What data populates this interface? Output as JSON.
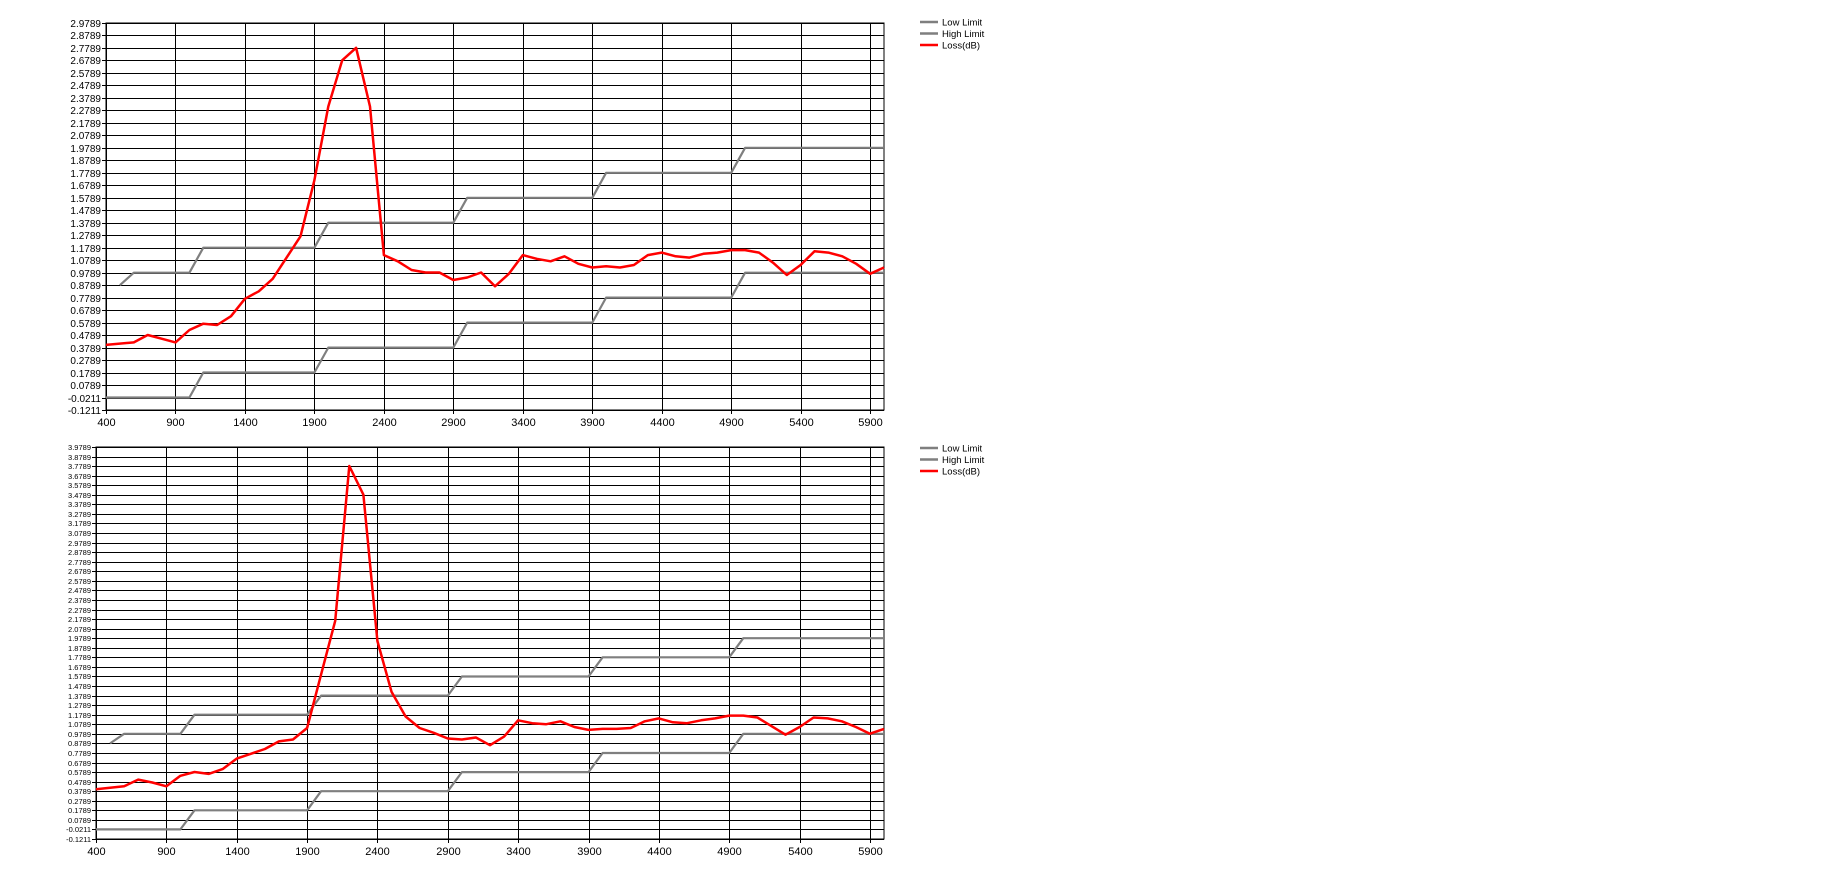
{
  "colors": {
    "limit": "#7f7f7f",
    "loss": "#ff0000",
    "grid": "#000000",
    "background": "#ffffff"
  },
  "chart_data": [
    {
      "type": "line",
      "title": "",
      "xlabel": "",
      "ylabel": "",
      "xlim": [
        400,
        6000
      ],
      "ylim": [
        -0.1211,
        2.9789
      ],
      "x_ticks": [
        "400",
        "900",
        "1400",
        "1900",
        "2400",
        "2900",
        "3400",
        "3900",
        "4400",
        "4900",
        "5400",
        "5900"
      ],
      "y_ticks": [
        "2.9789",
        "2.8789",
        "2.7789",
        "2.6789",
        "2.5789",
        "2.4789",
        "2.3789",
        "2.2789",
        "2.1789",
        "2.0789",
        "1.9789",
        "1.8789",
        "1.7789",
        "1.6789",
        "1.5789",
        "1.4789",
        "1.3789",
        "1.2789",
        "1.1789",
        "1.0789",
        "0.9789",
        "0.8789",
        "0.7789",
        "0.6789",
        "0.5789",
        "0.4789",
        "0.3789",
        "0.2789",
        "0.1789",
        "0.0789",
        "-0.0211",
        "-0.1211"
      ],
      "grid": true,
      "legend_position": "right",
      "series": [
        {
          "name": "Low Limit",
          "color": "#7f7f7f",
          "x": [
            400,
            1000,
            1100,
            1900,
            2000,
            2900,
            3000,
            3900,
            4000,
            4900,
            5000,
            6000
          ],
          "y": [
            -0.0211,
            -0.0211,
            0.1789,
            0.1789,
            0.3789,
            0.3789,
            0.5789,
            0.5789,
            0.7789,
            0.7789,
            0.9789,
            0.9789
          ]
        },
        {
          "name": "High Limit",
          "color": "#7f7f7f",
          "x": [
            500,
            600,
            1000,
            1100,
            1900,
            2000,
            2900,
            3000,
            3900,
            4000,
            4900,
            5000,
            6000
          ],
          "y": [
            0.8789,
            0.9789,
            0.9789,
            1.1789,
            1.1789,
            1.3789,
            1.3789,
            1.5789,
            1.5789,
            1.7789,
            1.7789,
            1.9789,
            1.9789
          ]
        },
        {
          "name": "Loss(dB)",
          "color": "#ff0000",
          "x": [
            400,
            600,
            700,
            800,
            900,
            1000,
            1100,
            1200,
            1300,
            1400,
            1500,
            1600,
            1700,
            1800,
            1900,
            2000,
            2100,
            2200,
            2300,
            2400,
            2500,
            2600,
            2700,
            2800,
            2900,
            3000,
            3100,
            3200,
            3300,
            3400,
            3500,
            3600,
            3700,
            3800,
            3900,
            4000,
            4100,
            4200,
            4300,
            4400,
            4500,
            4600,
            4700,
            4800,
            4900,
            5000,
            5100,
            5200,
            5300,
            5400,
            5500,
            5600,
            5700,
            5800,
            5900,
            6000
          ],
          "y": [
            0.4,
            0.42,
            0.48,
            0.45,
            0.42,
            0.52,
            0.57,
            0.56,
            0.63,
            0.77,
            0.83,
            0.93,
            1.1,
            1.27,
            1.72,
            2.31,
            2.68,
            2.78,
            2.31,
            1.12,
            1.07,
            1.0,
            0.98,
            0.98,
            0.92,
            0.94,
            0.98,
            0.87,
            0.97,
            1.12,
            1.09,
            1.07,
            1.11,
            1.05,
            1.02,
            1.03,
            1.02,
            1.04,
            1.12,
            1.14,
            1.11,
            1.1,
            1.13,
            1.14,
            1.16,
            1.16,
            1.14,
            1.06,
            0.96,
            1.04,
            1.15,
            1.14,
            1.11,
            1.05,
            0.97,
            1.02
          ]
        }
      ]
    },
    {
      "type": "line",
      "title": "",
      "xlabel": "",
      "ylabel": "",
      "xlim": [
        400,
        6000
      ],
      "ylim": [
        -0.1211,
        3.9789
      ],
      "x_ticks": [
        "400",
        "900",
        "1400",
        "1900",
        "2400",
        "2900",
        "3400",
        "3900",
        "4400",
        "4900",
        "5400",
        "5900"
      ],
      "y_ticks": [
        "3.9789",
        "3.8789",
        "3.7789",
        "3.6789",
        "3.5789",
        "3.4789",
        "3.3789",
        "3.2789",
        "3.1789",
        "3.0789",
        "2.9789",
        "2.8789",
        "2.7789",
        "2.6789",
        "2.5789",
        "2.4789",
        "2.3789",
        "2.2789",
        "2.1789",
        "2.0789",
        "1.9789",
        "1.8789",
        "1.7789",
        "1.6789",
        "1.5789",
        "1.4789",
        "1.3789",
        "1.2789",
        "1.1789",
        "1.0789",
        "0.9789",
        "0.8789",
        "0.7789",
        "0.6789",
        "0.5789",
        "0.4789",
        "0.3789",
        "0.2789",
        "0.1789",
        "0.0789",
        "-0.0211",
        "-0.1211"
      ],
      "grid": true,
      "legend_position": "right",
      "series": [
        {
          "name": "Low Limit",
          "color": "#7f7f7f",
          "x": [
            400,
            1000,
            1100,
            1900,
            2000,
            2900,
            3000,
            3900,
            4000,
            4900,
            5000,
            6000
          ],
          "y": [
            -0.0211,
            -0.0211,
            0.1789,
            0.1789,
            0.3789,
            0.3789,
            0.5789,
            0.5789,
            0.7789,
            0.7789,
            0.9789,
            0.9789
          ]
        },
        {
          "name": "High Limit",
          "color": "#7f7f7f",
          "x": [
            500,
            600,
            1000,
            1100,
            1900,
            2000,
            2900,
            3000,
            3900,
            4000,
            4900,
            5000,
            6000
          ],
          "y": [
            0.8789,
            0.9789,
            0.9789,
            1.1789,
            1.1789,
            1.3789,
            1.3789,
            1.5789,
            1.5789,
            1.7789,
            1.7789,
            1.9789,
            1.9789
          ]
        },
        {
          "name": "Loss(dB)",
          "color": "#ff0000",
          "x": [
            400,
            600,
            700,
            800,
            900,
            1000,
            1100,
            1200,
            1300,
            1400,
            1500,
            1600,
            1700,
            1800,
            1900,
            2000,
            2100,
            2200,
            2300,
            2400,
            2500,
            2600,
            2700,
            2800,
            2900,
            3000,
            3100,
            3200,
            3300,
            3400,
            3500,
            3600,
            3700,
            3800,
            3900,
            4000,
            4100,
            4200,
            4300,
            4400,
            4500,
            4600,
            4700,
            4800,
            4900,
            5000,
            5100,
            5200,
            5300,
            5400,
            5500,
            5600,
            5700,
            5800,
            5900,
            6000
          ],
          "y": [
            0.4,
            0.43,
            0.5,
            0.47,
            0.43,
            0.54,
            0.58,
            0.56,
            0.61,
            0.72,
            0.77,
            0.82,
            0.9,
            0.92,
            1.04,
            1.6,
            2.16,
            3.78,
            3.48,
            1.95,
            1.42,
            1.16,
            1.04,
            0.99,
            0.93,
            0.92,
            0.94,
            0.86,
            0.95,
            1.12,
            1.09,
            1.08,
            1.11,
            1.05,
            1.02,
            1.03,
            1.03,
            1.04,
            1.11,
            1.14,
            1.1,
            1.09,
            1.12,
            1.14,
            1.17,
            1.17,
            1.15,
            1.06,
            0.97,
            1.05,
            1.15,
            1.14,
            1.11,
            1.05,
            0.98,
            1.03
          ]
        }
      ]
    }
  ]
}
